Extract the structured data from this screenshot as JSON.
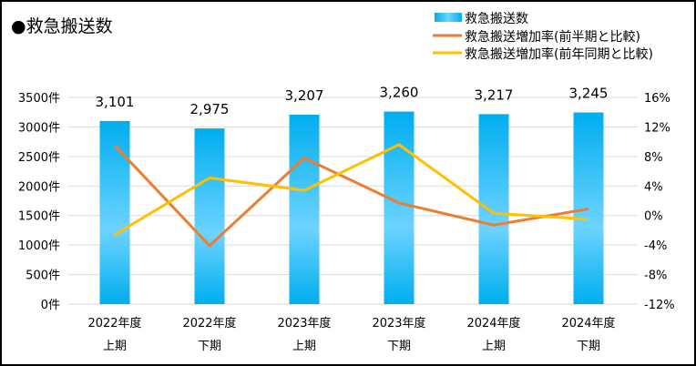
{
  "chart_data": {
    "type": "bar+line",
    "title": "●救急搬送数",
    "categories": [
      [
        "2022年度",
        "上期"
      ],
      [
        "2022年度",
        "下期"
      ],
      [
        "2023年度",
        "上期"
      ],
      [
        "2023年度",
        "下期"
      ],
      [
        "2024年度",
        "上期"
      ],
      [
        "2024年度",
        "下期"
      ]
    ],
    "bar_series": {
      "name": "救急搬送数",
      "values": [
        3101,
        2975,
        3207,
        3260,
        3217,
        3245
      ],
      "labels": [
        "3,101",
        "2,975",
        "3,207",
        "3,260",
        "3,217",
        "3,245"
      ],
      "color": "#00B0F0"
    },
    "line_series": [
      {
        "name": "救急搬送増加率(前半期と比較)",
        "values": [
          9.5,
          -4.1,
          7.8,
          1.7,
          -1.3,
          0.9
        ],
        "color": "#ED7D31"
      },
      {
        "name": "救急搬送増加率(前年同期と比較)",
        "values": [
          -2.6,
          5.1,
          3.4,
          9.6,
          0.3,
          -0.5
        ],
        "color": "#FFC000"
      }
    ],
    "left_axis": {
      "ylim": [
        0,
        3500
      ],
      "ticks": [
        "0件",
        "500件",
        "1000件",
        "1500件",
        "2000件",
        "2500件",
        "3000件",
        "3500件"
      ]
    },
    "right_axis": {
      "ylim": [
        -12,
        16
      ],
      "ticks": [
        "-12%",
        "-8%",
        "-4%",
        "0%",
        "4%",
        "8%",
        "12%",
        "16%"
      ]
    },
    "grid": true,
    "legend_position": "top-right"
  }
}
